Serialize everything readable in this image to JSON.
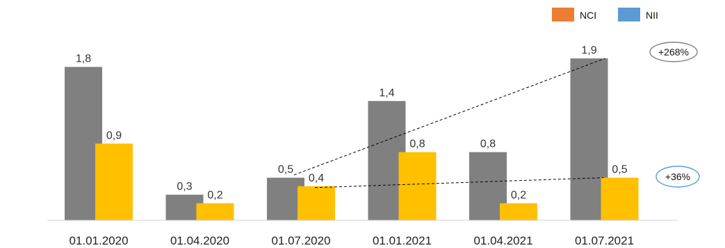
{
  "chart_data": {
    "type": "bar",
    "categories": [
      "01.01.2020",
      "01.04.2020",
      "01.07.2020",
      "01.01.2021",
      "01.04.2021",
      "01.07.2021"
    ],
    "series": [
      {
        "name": "NCI",
        "values": [
          1.8,
          0.3,
          0.5,
          1.4,
          0.8,
          1.9
        ],
        "value_labels": [
          "1,8",
          "0,3",
          "0,5",
          "1,4",
          "0,8",
          "1,9"
        ],
        "bar_color": "#808080",
        "legend_color": "#ED7D31"
      },
      {
        "name": "NII",
        "values": [
          0.9,
          0.2,
          0.4,
          0.8,
          0.2,
          0.5
        ],
        "value_labels": [
          "0,9",
          "0,2",
          "0,4",
          "0,8",
          "0,2",
          "0,5"
        ],
        "bar_color": "#FFC000",
        "legend_color": "#5B9BD5"
      }
    ],
    "ylim": [
      0,
      2.0
    ],
    "grid": false,
    "legend_position": "top-right",
    "annotations": [
      {
        "text": "+268%",
        "series_index": 0,
        "from_category": 2,
        "to_category": 5,
        "border_color": "#808080"
      },
      {
        "text": "+36%",
        "series_index": 1,
        "from_category": 2,
        "to_category": 5,
        "border_color": "#5B9BD5"
      }
    ]
  }
}
